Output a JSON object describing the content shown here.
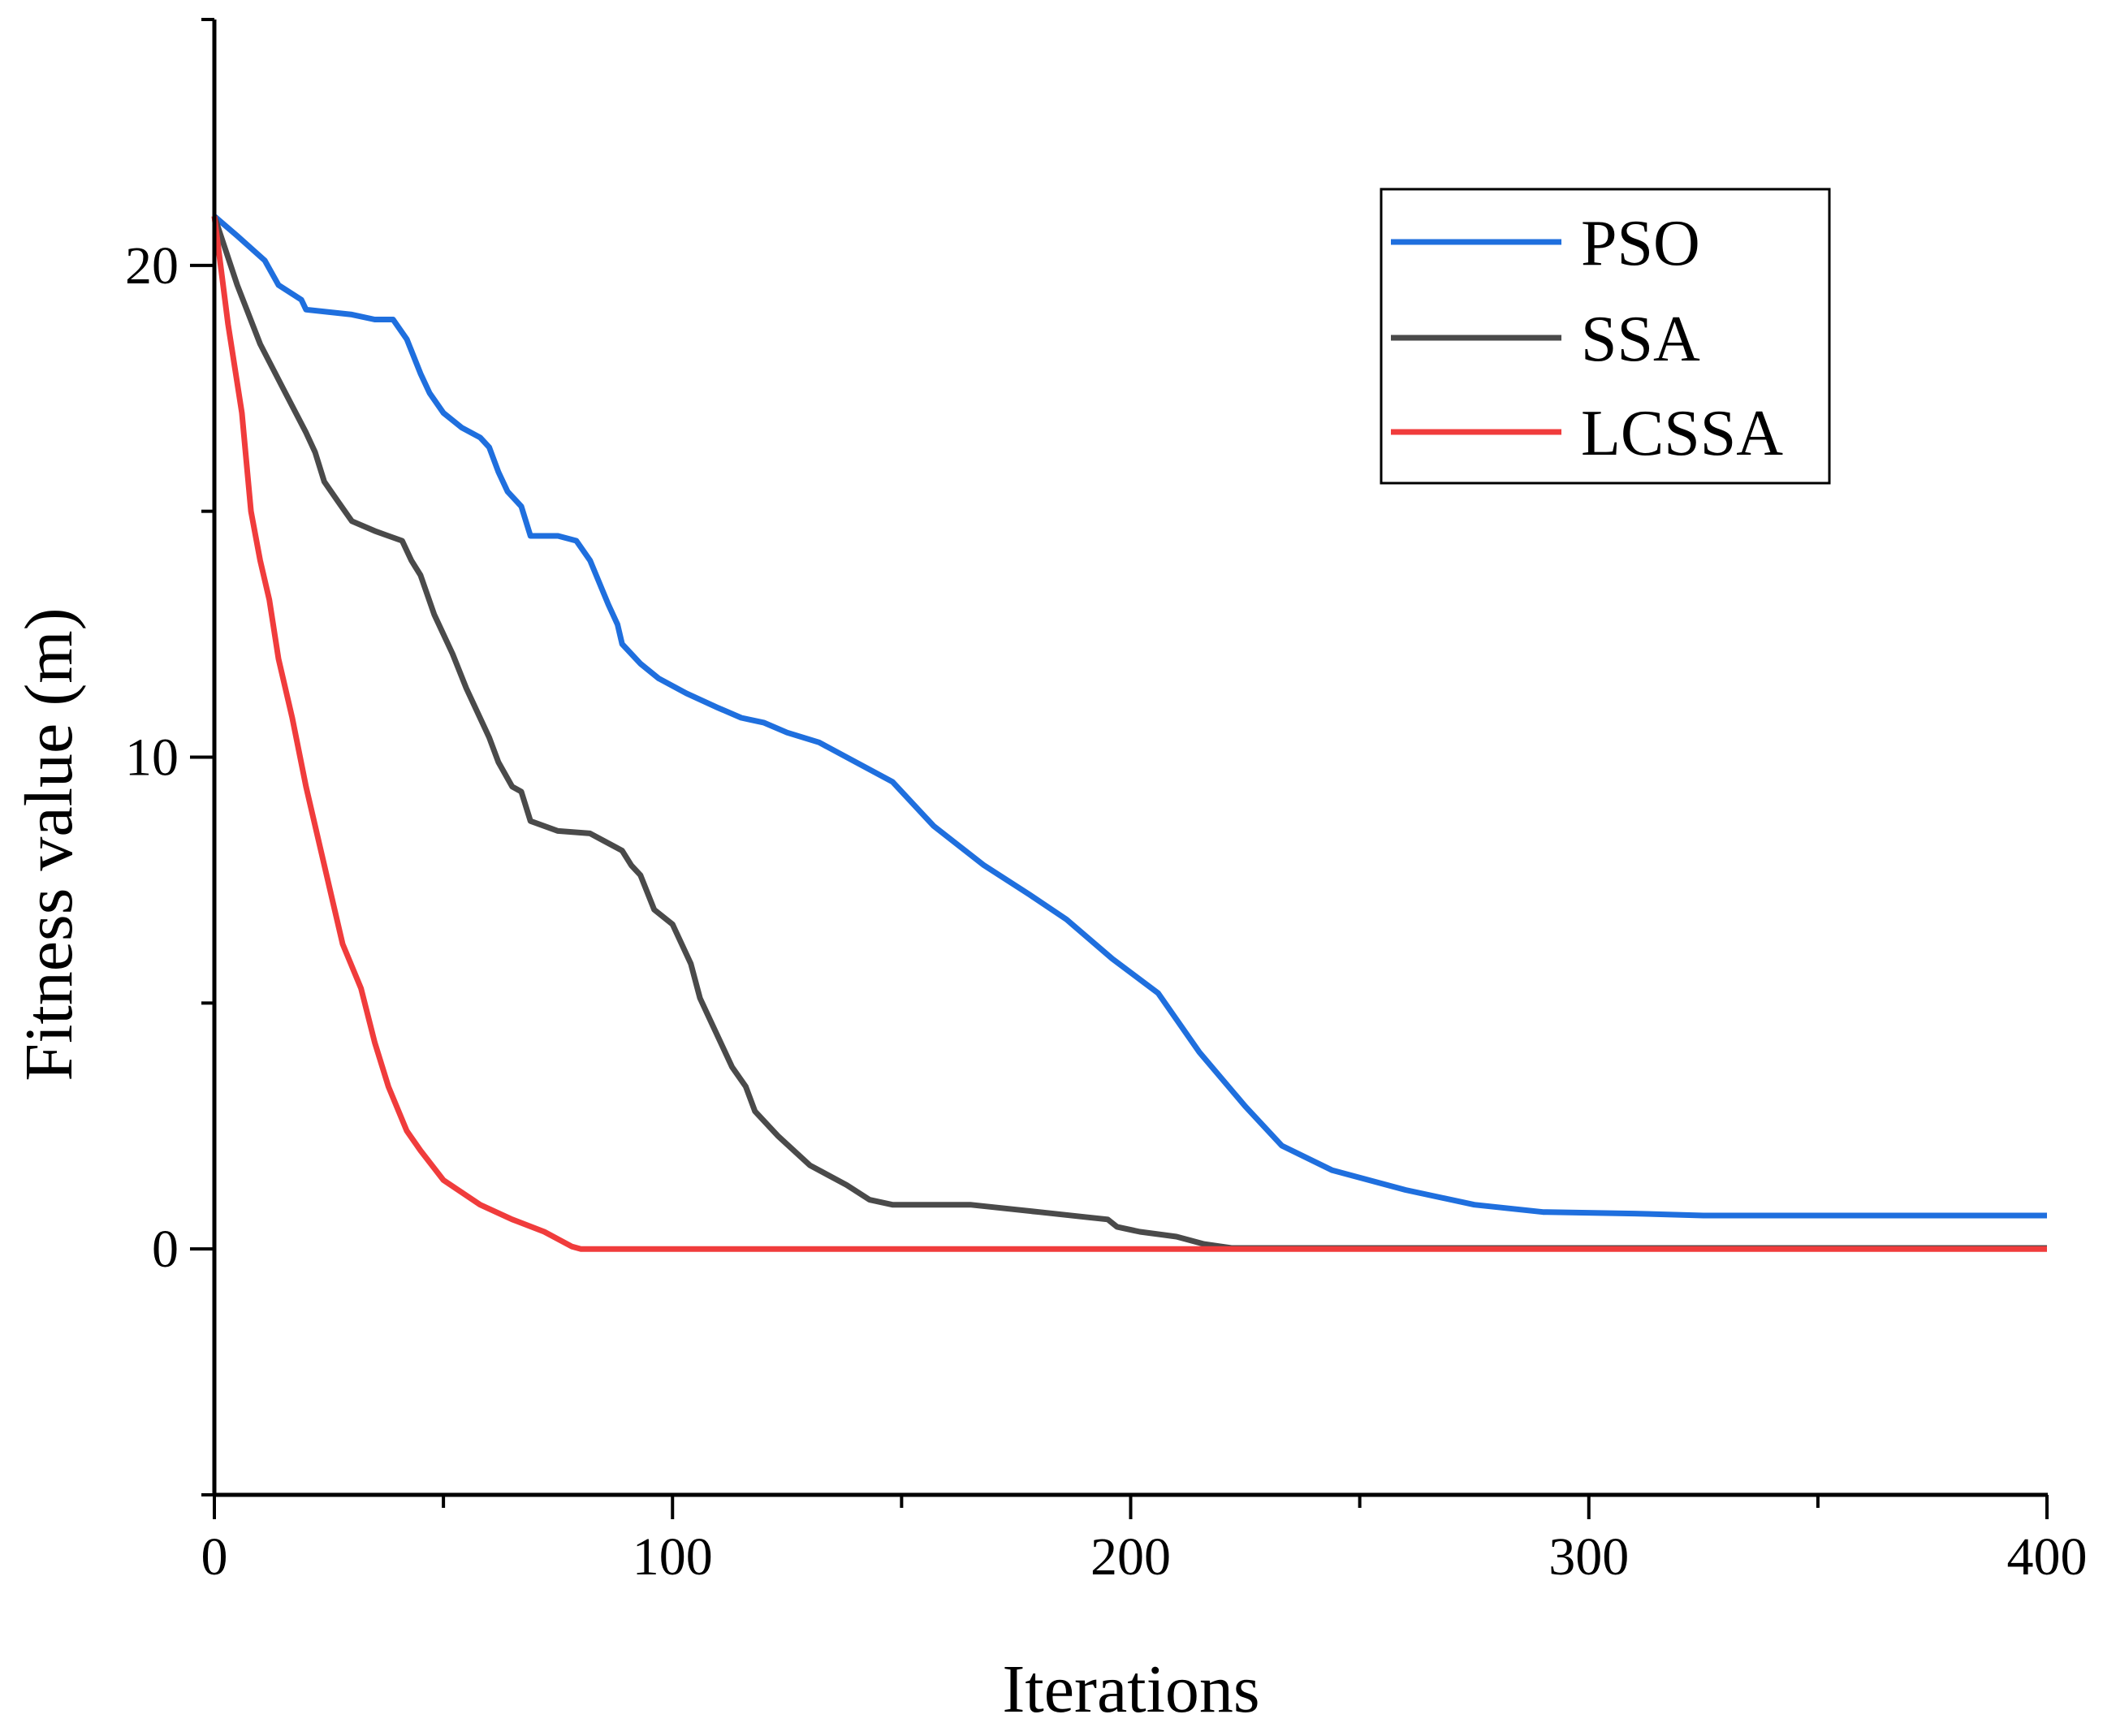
{
  "chart_data": {
    "type": "line",
    "title": "",
    "xlabel": "Iterations",
    "ylabel": "Fitness value (m)",
    "xlim": [
      0,
      400
    ],
    "ylim": [
      -5,
      25
    ],
    "x_ticks": [
      0,
      100,
      200,
      300,
      400
    ],
    "x_tick_labels": [
      "0",
      "100",
      "200",
      "300",
      "400"
    ],
    "y_ticks": [
      0,
      10,
      20
    ],
    "y_tick_labels": [
      "0",
      "10",
      "20"
    ],
    "grid": false,
    "legend": "top-right",
    "series": [
      {
        "name": "PSO",
        "color": "#1f6fde",
        "points": [
          [
            0,
            21
          ],
          [
            5,
            20.6
          ],
          [
            11,
            20.1
          ],
          [
            14,
            19.6
          ],
          [
            19,
            19.3
          ],
          [
            20,
            19.1
          ],
          [
            30,
            19
          ],
          [
            35,
            18.9
          ],
          [
            39,
            18.9
          ],
          [
            42,
            18.5
          ],
          [
            45,
            17.8
          ],
          [
            47,
            17.4
          ],
          [
            50,
            17
          ],
          [
            54,
            16.7
          ],
          [
            58,
            16.5
          ],
          [
            60,
            16.3
          ],
          [
            62,
            15.8
          ],
          [
            64,
            15.4
          ],
          [
            67,
            15.1
          ],
          [
            69,
            14.5
          ],
          [
            75,
            14.5
          ],
          [
            79,
            14.4
          ],
          [
            82,
            14
          ],
          [
            86,
            13.1
          ],
          [
            88,
            12.7
          ],
          [
            89,
            12.3
          ],
          [
            93,
            11.9
          ],
          [
            97,
            11.6
          ],
          [
            103,
            11.3
          ],
          [
            110,
            11
          ],
          [
            115,
            10.8
          ],
          [
            120,
            10.7
          ],
          [
            125,
            10.5
          ],
          [
            132,
            10.3
          ],
          [
            140,
            9.9
          ],
          [
            148,
            9.5
          ],
          [
            157,
            8.6
          ],
          [
            168,
            7.8
          ],
          [
            178,
            7.2
          ],
          [
            186,
            6.7
          ],
          [
            196,
            5.9
          ],
          [
            206,
            5.2
          ],
          [
            215,
            4
          ],
          [
            225,
            2.9
          ],
          [
            233,
            2.1
          ],
          [
            244,
            1.6
          ],
          [
            260,
            1.2
          ],
          [
            275,
            0.9
          ],
          [
            290,
            0.75
          ],
          [
            310,
            0.72
          ],
          [
            325,
            0.68
          ],
          [
            400,
            0.68
          ]
        ]
      },
      {
        "name": "SSA",
        "color": "#4a4a4a",
        "points": [
          [
            0,
            21
          ],
          [
            5,
            19.6
          ],
          [
            10,
            18.4
          ],
          [
            15,
            17.5
          ],
          [
            20,
            16.6
          ],
          [
            22,
            16.2
          ],
          [
            24,
            15.6
          ],
          [
            27,
            15.2
          ],
          [
            30,
            14.8
          ],
          [
            35,
            14.6
          ],
          [
            38,
            14.5
          ],
          [
            41,
            14.4
          ],
          [
            43,
            14
          ],
          [
            45,
            13.7
          ],
          [
            48,
            12.9
          ],
          [
            52,
            12.1
          ],
          [
            55,
            11.4
          ],
          [
            60,
            10.4
          ],
          [
            62,
            9.9
          ],
          [
            65,
            9.4
          ],
          [
            67,
            9.3
          ],
          [
            69,
            8.7
          ],
          [
            75,
            8.5
          ],
          [
            82,
            8.45
          ],
          [
            85,
            8.3
          ],
          [
            89,
            8.1
          ],
          [
            91,
            7.8
          ],
          [
            93,
            7.6
          ],
          [
            96,
            6.9
          ],
          [
            100,
            6.6
          ],
          [
            104,
            5.8
          ],
          [
            106,
            5.1
          ],
          [
            109,
            4.5
          ],
          [
            113,
            3.7
          ],
          [
            116,
            3.3
          ],
          [
            118,
            2.8
          ],
          [
            123,
            2.3
          ],
          [
            130,
            1.7
          ],
          [
            138,
            1.3
          ],
          [
            143,
            1
          ],
          [
            148,
            0.9
          ],
          [
            165,
            0.9
          ],
          [
            175,
            0.8
          ],
          [
            180,
            0.75
          ],
          [
            190,
            0.65
          ],
          [
            195,
            0.6
          ],
          [
            197,
            0.45
          ],
          [
            202,
            0.35
          ],
          [
            210,
            0.25
          ],
          [
            216,
            0.1
          ],
          [
            222,
            0.02
          ],
          [
            230,
            0.02
          ],
          [
            400,
            0.02
          ]
        ]
      },
      {
        "name": "LCSSA",
        "color": "#f03c3c",
        "points": [
          [
            0,
            21
          ],
          [
            3,
            18.8
          ],
          [
            6,
            17
          ],
          [
            8,
            15
          ],
          [
            10,
            14
          ],
          [
            12,
            13.2
          ],
          [
            14,
            12
          ],
          [
            17,
            10.8
          ],
          [
            20,
            9.4
          ],
          [
            23,
            8.2
          ],
          [
            26,
            7
          ],
          [
            28,
            6.2
          ],
          [
            32,
            5.3
          ],
          [
            35,
            4.2
          ],
          [
            38,
            3.3
          ],
          [
            42,
            2.4
          ],
          [
            45,
            2
          ],
          [
            50,
            1.4
          ],
          [
            58,
            0.9
          ],
          [
            65,
            0.6
          ],
          [
            72,
            0.35
          ],
          [
            78,
            0.05
          ],
          [
            80,
            0
          ],
          [
            400,
            0
          ]
        ]
      }
    ]
  }
}
